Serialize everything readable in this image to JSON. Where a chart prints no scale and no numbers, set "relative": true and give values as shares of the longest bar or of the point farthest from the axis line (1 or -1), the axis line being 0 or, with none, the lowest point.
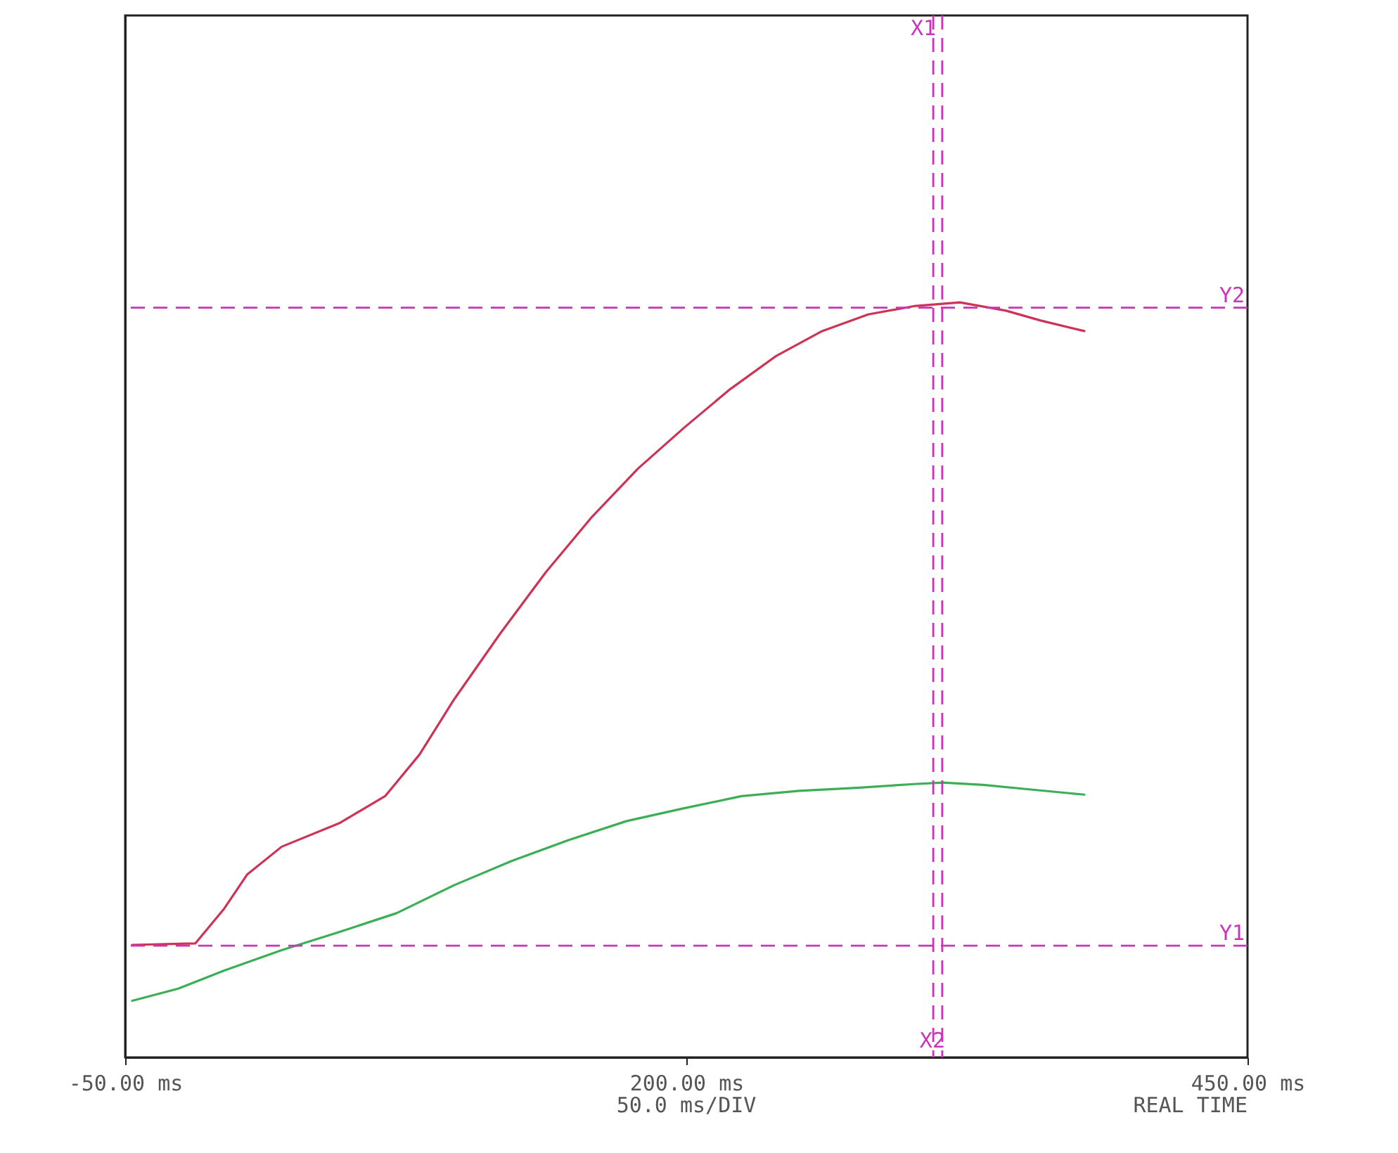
{
  "chart_data": {
    "type": "line",
    "relative": true,
    "xlim": [
      -50,
      450
    ],
    "xticks": [
      {
        "value": -50,
        "label": "-50.00 ms"
      },
      {
        "value": 200,
        "label": "200.00 ms"
      },
      {
        "value": 450,
        "label": "450.00 ms"
      }
    ],
    "tick_labels": "x",
    "grid": false,
    "line_style": "solid",
    "series": [
      {
        "color": "#cc3355",
        "x": [
          -46.9,
          -18.7,
          -5.9,
          4.3,
          19.7,
          45.3,
          65.8,
          81.1,
          96.5,
          117,
          137.5,
          158,
          178.5,
          199,
          219.5,
          240,
          260.5,
          281,
          301.4,
          321.9,
          342.4,
          357.8,
          377.3
        ],
        "values": [
          0.149,
          0.151,
          0.197,
          0.242,
          0.279,
          0.31,
          0.346,
          0.401,
          0.474,
          0.561,
          0.643,
          0.716,
          0.78,
          0.834,
          0.885,
          0.929,
          0.962,
          0.984,
          0.995,
          1,
          0.989,
          0.976,
          0.962
        ]
      },
      {
        "color": "#3cae55",
        "x": [
          -46.9,
          -26.4,
          -5.9,
          19.7,
          45.3,
          70.9,
          96.5,
          122.1,
          147.7,
          173.4,
          199,
          224.6,
          250.2,
          275.8,
          301.4,
          314.3,
          332.2,
          352.7,
          377.3
        ],
        "values": [
          0.075,
          0.091,
          0.115,
          0.142,
          0.166,
          0.191,
          0.228,
          0.26,
          0.288,
          0.313,
          0.33,
          0.346,
          0.353,
          0.357,
          0.362,
          0.364,
          0.361,
          0.355,
          0.348
        ]
      }
    ],
    "ref_lines": [
      {
        "axis": "x",
        "value": 310,
        "label": "X1",
        "color": "#cc33bb",
        "line_style": "dashed"
      },
      {
        "axis": "x",
        "value": 314,
        "label": "X2",
        "color": "#cc33bb",
        "line_style": "dashed"
      },
      {
        "axis": "y",
        "value": 0.148,
        "label": "Y1",
        "color": "#cc33bb",
        "line_style": "dashed"
      },
      {
        "axis": "y",
        "value": 0.993,
        "label": "Y2",
        "color": "#cc33bb",
        "line_style": "dashed"
      }
    ],
    "annotations": [
      "50.0 ms/DIV",
      "REAL TIME"
    ]
  }
}
